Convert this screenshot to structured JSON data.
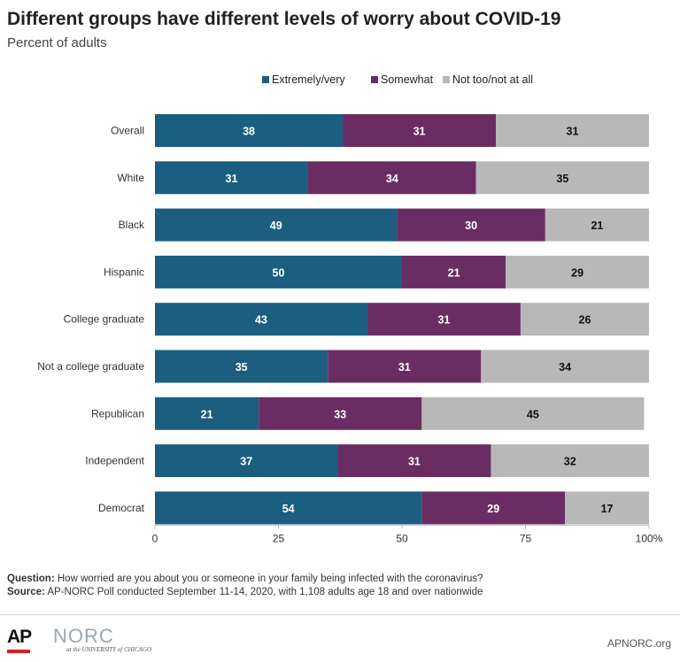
{
  "header": {
    "title": "Different groups have different levels of worry about COVID-19",
    "subtitle": "Percent of adults"
  },
  "footer": {
    "question_label": "Question:",
    "question_text": "How worried are you about you or someone in your family being infected with the coronavirus?",
    "source_label": "Source:",
    "source_text": "AP-NORC Poll conducted September 11-14, 2020, with 1,108 adults age 18 and over nationwide",
    "ap_logo": "AP",
    "norc_logo": "NORC",
    "norc_sub": "at the UNIVERSITY of CHICAGO",
    "url": "APNORC.org"
  },
  "chart_data": {
    "type": "bar",
    "orientation": "horizontal",
    "stacked": true,
    "categories": [
      "Overall",
      "White",
      "Black",
      "Hispanic",
      "College graduate",
      "Not a college graduate",
      "Republican",
      "Independent",
      "Democrat"
    ],
    "series": [
      {
        "name": "Extremely/very",
        "color": "#1b5e7f",
        "label_color": "#ffffff",
        "values": [
          38,
          31,
          49,
          50,
          43,
          35,
          21,
          37,
          54
        ]
      },
      {
        "name": "Somewhat",
        "color": "#6a2d63",
        "label_color": "#ffffff",
        "values": [
          31,
          34,
          30,
          21,
          31,
          31,
          33,
          31,
          29
        ]
      },
      {
        "name": "Not too/not at all",
        "color": "#b8b8b8",
        "label_color": "#111111",
        "values": [
          31,
          35,
          21,
          29,
          26,
          34,
          45,
          32,
          17
        ]
      }
    ],
    "xlim": [
      0,
      100
    ],
    "xticks": [
      "0",
      "25",
      "50",
      "75",
      "100%"
    ],
    "xtick_values": [
      0,
      25,
      50,
      75,
      100
    ],
    "legend_position": "top-right",
    "grid": false
  }
}
